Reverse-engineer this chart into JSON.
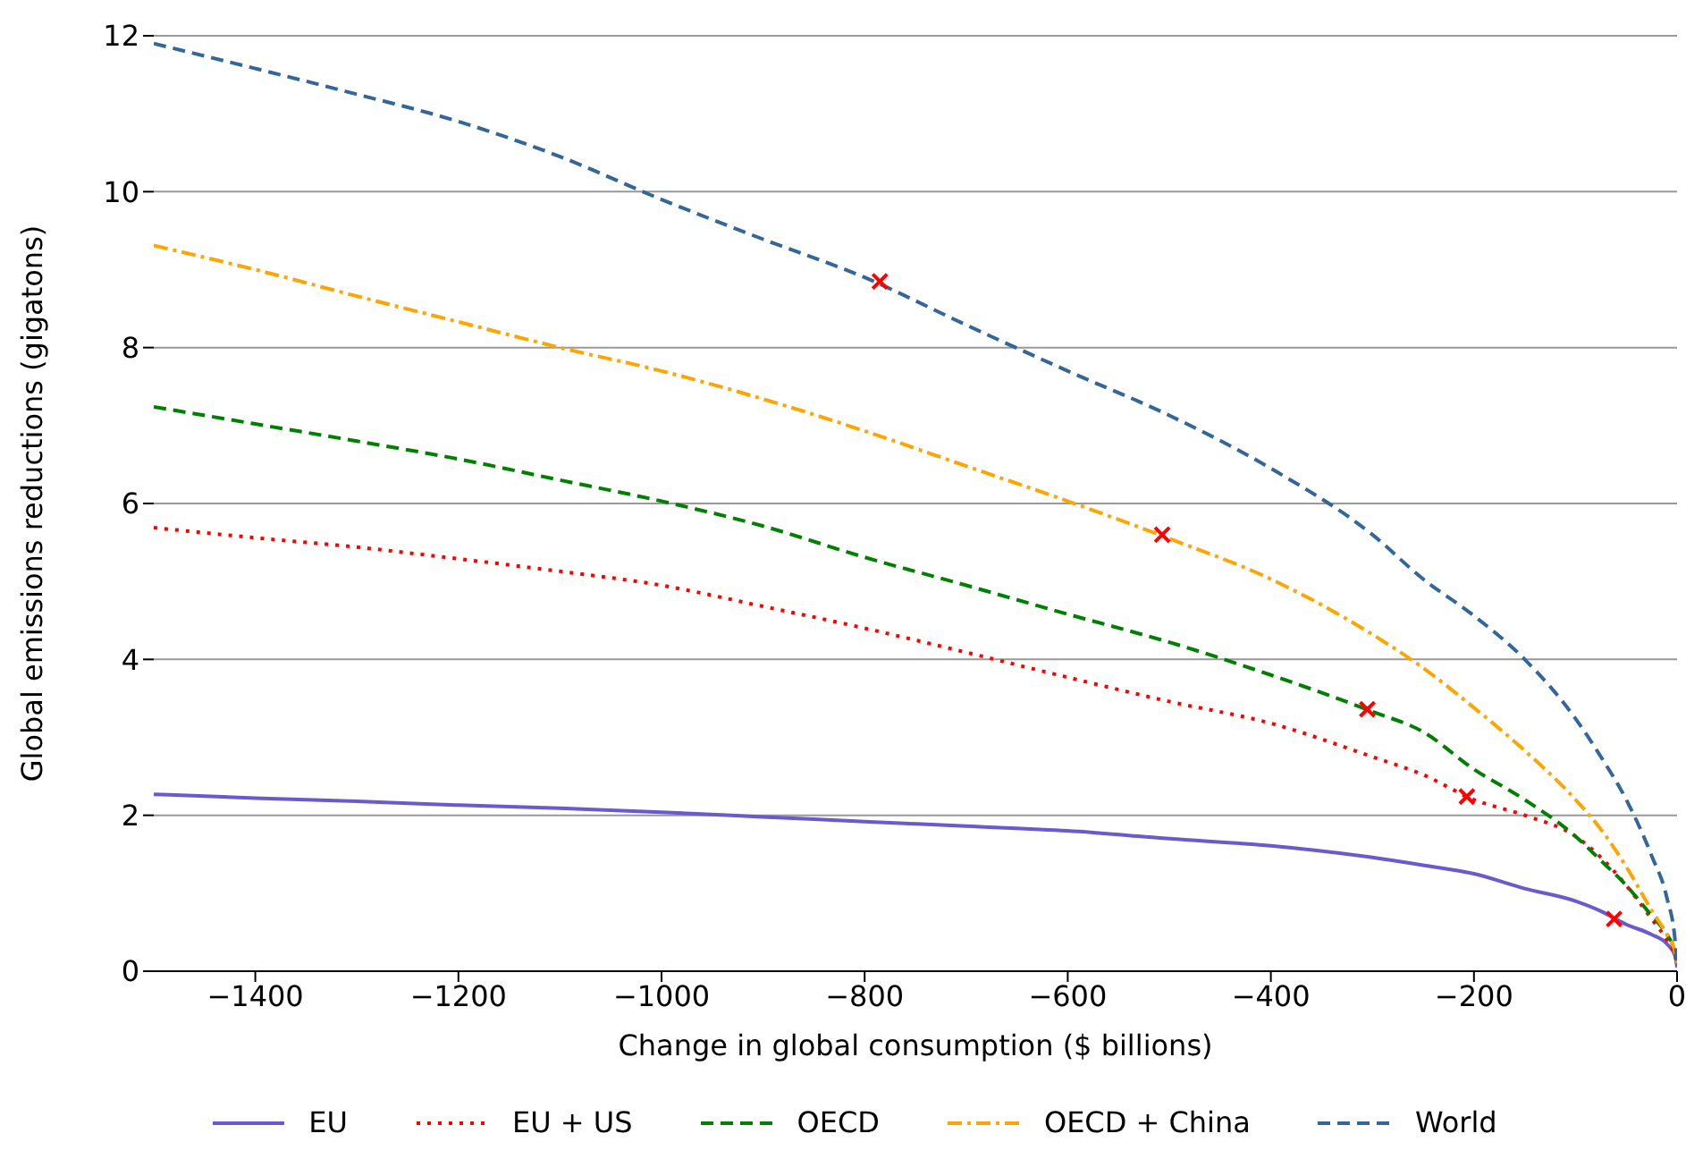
{
  "chart_data": {
    "type": "line",
    "xlabel": "Change in global consumption ($ billions)",
    "ylabel": "Global emissions reductions (gigatons)",
    "x": [
      -1500,
      -1400,
      -1300,
      -1200,
      -1100,
      -1000,
      -900,
      -800,
      -700,
      -600,
      -500,
      -400,
      -300,
      -250,
      -200,
      -150,
      -100,
      -75,
      -50,
      -25,
      -10,
      -2,
      0
    ],
    "series": [
      {
        "name": "EU",
        "color": "#6a5acd",
        "line_style": "solid",
        "values": [
          2.27,
          2.22,
          2.18,
          2.13,
          2.09,
          2.04,
          1.98,
          1.92,
          1.86,
          1.8,
          1.7,
          1.61,
          1.46,
          1.36,
          1.25,
          1.06,
          0.9,
          0.77,
          0.6,
          0.47,
          0.35,
          0.2,
          0.05
        ]
      },
      {
        "name": "EU + US",
        "color": "#ff0000",
        "line_style": "dotted",
        "values": [
          5.69,
          5.56,
          5.44,
          5.29,
          5.13,
          4.95,
          4.68,
          4.4,
          4.09,
          3.77,
          3.46,
          3.18,
          2.75,
          2.52,
          2.2,
          2.0,
          1.73,
          1.46,
          1.1,
          0.67,
          0.4,
          0.2,
          0.1
        ]
      },
      {
        "name": "OECD",
        "color": "#008000",
        "line_style": "dashed",
        "values": [
          7.24,
          7.02,
          6.8,
          6.57,
          6.3,
          6.03,
          5.71,
          5.31,
          4.95,
          4.58,
          4.22,
          3.8,
          3.33,
          3.07,
          2.59,
          2.2,
          1.73,
          1.42,
          1.1,
          0.71,
          0.47,
          0.25,
          0.1
        ]
      },
      {
        "name": "OECD + China",
        "color": "#ffa500",
        "line_style": "dashdot",
        "values": [
          9.31,
          9.0,
          8.66,
          8.33,
          8.0,
          7.7,
          7.34,
          6.93,
          6.48,
          6.03,
          5.55,
          5.03,
          4.32,
          3.89,
          3.38,
          2.83,
          2.2,
          1.82,
          1.34,
          0.78,
          0.47,
          0.25,
          0.1
        ]
      },
      {
        "name": "World",
        "color": "#336699",
        "line_style": "dashed",
        "values": [
          11.9,
          11.58,
          11.25,
          10.9,
          10.45,
          9.9,
          9.39,
          8.9,
          8.29,
          7.7,
          7.13,
          6.45,
          5.6,
          5.03,
          4.56,
          4.0,
          3.24,
          2.75,
          2.2,
          1.48,
          0.94,
          0.4,
          0.1
        ]
      },
      {
        "type": "scatter",
        "color": "#ff0000",
        "marker": "cross",
        "x": [
          -785,
          -507,
          -305,
          -207,
          -62
        ],
        "values": [
          8.85,
          5.6,
          3.36,
          2.24,
          0.67
        ]
      }
    ],
    "xlim": [
      -1500,
      0
    ],
    "xticks": [
      -1400,
      -1200,
      -1000,
      -800,
      -600,
      -400,
      -200,
      0
    ],
    "ylim": [
      0,
      12
    ],
    "yticks": [
      0,
      2,
      4,
      6,
      8,
      10,
      12
    ],
    "grid": "y",
    "legend": "bottom",
    "marker": "none"
  }
}
